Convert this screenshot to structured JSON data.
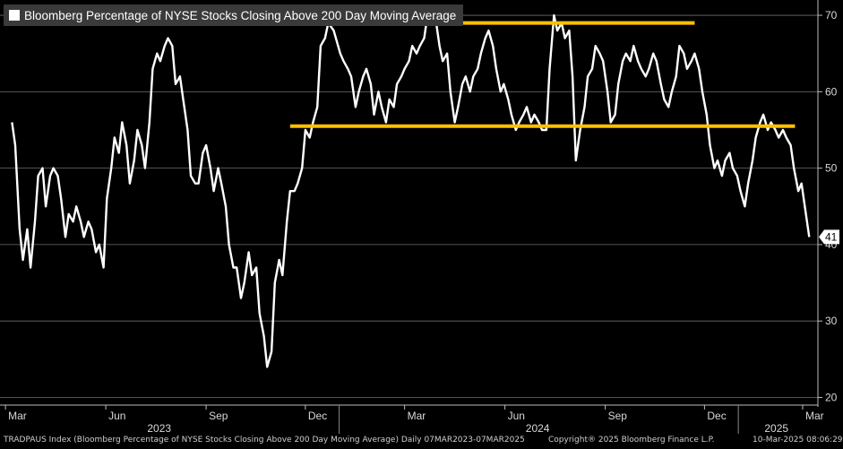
{
  "chart_data": {
    "type": "line",
    "title": "Bloomberg Percentage of NYSE Stocks Closing Above 200 Day Moving Average",
    "series": [
      {
        "color": "#ffffff",
        "points": [
          [
            "2023-03-07",
            56
          ],
          [
            "2023-03-10",
            53
          ],
          [
            "2023-03-14",
            42
          ],
          [
            "2023-03-17",
            38
          ],
          [
            "2023-03-21",
            42
          ],
          [
            "2023-03-24",
            37
          ],
          [
            "2023-03-28",
            43
          ],
          [
            "2023-03-31",
            49
          ],
          [
            "2023-04-04",
            50
          ],
          [
            "2023-04-07",
            45
          ],
          [
            "2023-04-11",
            49
          ],
          [
            "2023-04-14",
            50
          ],
          [
            "2023-04-18",
            49
          ],
          [
            "2023-04-21",
            46
          ],
          [
            "2023-04-25",
            41
          ],
          [
            "2023-04-28",
            44
          ],
          [
            "2023-05-02",
            43
          ],
          [
            "2023-05-05",
            45
          ],
          [
            "2023-05-09",
            43
          ],
          [
            "2023-05-12",
            41
          ],
          [
            "2023-05-16",
            43
          ],
          [
            "2023-05-19",
            42
          ],
          [
            "2023-05-23",
            39
          ],
          [
            "2023-05-26",
            40
          ],
          [
            "2023-05-30",
            37
          ],
          [
            "2023-06-02",
            46
          ],
          [
            "2023-06-06",
            50
          ],
          [
            "2023-06-09",
            54
          ],
          [
            "2023-06-13",
            52
          ],
          [
            "2023-06-16",
            56
          ],
          [
            "2023-06-20",
            53
          ],
          [
            "2023-06-23",
            48
          ],
          [
            "2023-06-27",
            51
          ],
          [
            "2023-06-30",
            55
          ],
          [
            "2023-07-04",
            53
          ],
          [
            "2023-07-07",
            50
          ],
          [
            "2023-07-11",
            56
          ],
          [
            "2023-07-14",
            63
          ],
          [
            "2023-07-18",
            65
          ],
          [
            "2023-07-21",
            64
          ],
          [
            "2023-07-25",
            66
          ],
          [
            "2023-07-28",
            67
          ],
          [
            "2023-08-01",
            66
          ],
          [
            "2023-08-04",
            61
          ],
          [
            "2023-08-08",
            62
          ],
          [
            "2023-08-11",
            59
          ],
          [
            "2023-08-15",
            55
          ],
          [
            "2023-08-18",
            49
          ],
          [
            "2023-08-22",
            48
          ],
          [
            "2023-08-25",
            48
          ],
          [
            "2023-08-29",
            52
          ],
          [
            "2023-09-01",
            53
          ],
          [
            "2023-09-05",
            50
          ],
          [
            "2023-09-08",
            47
          ],
          [
            "2023-09-12",
            50
          ],
          [
            "2023-09-15",
            48
          ],
          [
            "2023-09-19",
            45
          ],
          [
            "2023-09-22",
            40
          ],
          [
            "2023-09-26",
            37
          ],
          [
            "2023-09-29",
            37
          ],
          [
            "2023-10-03",
            33
          ],
          [
            "2023-10-06",
            35
          ],
          [
            "2023-10-10",
            39
          ],
          [
            "2023-10-13",
            36
          ],
          [
            "2023-10-17",
            37
          ],
          [
            "2023-10-20",
            31
          ],
          [
            "2023-10-24",
            28
          ],
          [
            "2023-10-27",
            24
          ],
          [
            "2023-10-31",
            26
          ],
          [
            "2023-11-03",
            35
          ],
          [
            "2023-11-07",
            38
          ],
          [
            "2023-11-10",
            36
          ],
          [
            "2023-11-14",
            43
          ],
          [
            "2023-11-17",
            47
          ],
          [
            "2023-11-21",
            47
          ],
          [
            "2023-11-24",
            48
          ],
          [
            "2023-11-28",
            50
          ],
          [
            "2023-12-01",
            55
          ],
          [
            "2023-12-05",
            54
          ],
          [
            "2023-12-08",
            56
          ],
          [
            "2023-12-12",
            58
          ],
          [
            "2023-12-15",
            66
          ],
          [
            "2023-12-19",
            67
          ],
          [
            "2023-12-22",
            69
          ],
          [
            "2023-12-27",
            68
          ],
          [
            "2024-01-02",
            65
          ],
          [
            "2024-01-05",
            64
          ],
          [
            "2024-01-09",
            63
          ],
          [
            "2024-01-12",
            62
          ],
          [
            "2024-01-16",
            58
          ],
          [
            "2024-01-19",
            60
          ],
          [
            "2024-01-23",
            62
          ],
          [
            "2024-01-26",
            63
          ],
          [
            "2024-01-30",
            61
          ],
          [
            "2024-02-02",
            57
          ],
          [
            "2024-02-06",
            60
          ],
          [
            "2024-02-09",
            58
          ],
          [
            "2024-02-13",
            56
          ],
          [
            "2024-02-16",
            59
          ],
          [
            "2024-02-20",
            58
          ],
          [
            "2024-02-23",
            61
          ],
          [
            "2024-02-27",
            62
          ],
          [
            "2024-03-01",
            63
          ],
          [
            "2024-03-05",
            64
          ],
          [
            "2024-03-08",
            66
          ],
          [
            "2024-03-12",
            65
          ],
          [
            "2024-03-15",
            66
          ],
          [
            "2024-03-19",
            67
          ],
          [
            "2024-03-22",
            70
          ],
          [
            "2024-03-26",
            69
          ],
          [
            "2024-03-29",
            70
          ],
          [
            "2024-04-02",
            66
          ],
          [
            "2024-04-05",
            64
          ],
          [
            "2024-04-09",
            65
          ],
          [
            "2024-04-12",
            60
          ],
          [
            "2024-04-16",
            56
          ],
          [
            "2024-04-19",
            58
          ],
          [
            "2024-04-23",
            61
          ],
          [
            "2024-04-26",
            62
          ],
          [
            "2024-04-30",
            60
          ],
          [
            "2024-05-03",
            62
          ],
          [
            "2024-05-07",
            63
          ],
          [
            "2024-05-10",
            65
          ],
          [
            "2024-05-14",
            67
          ],
          [
            "2024-05-17",
            68
          ],
          [
            "2024-05-21",
            66
          ],
          [
            "2024-05-24",
            63
          ],
          [
            "2024-05-28",
            60
          ],
          [
            "2024-05-31",
            61
          ],
          [
            "2024-06-04",
            59
          ],
          [
            "2024-06-07",
            57
          ],
          [
            "2024-06-11",
            55
          ],
          [
            "2024-06-14",
            56
          ],
          [
            "2024-06-18",
            57
          ],
          [
            "2024-06-21",
            58
          ],
          [
            "2024-06-25",
            56
          ],
          [
            "2024-06-28",
            57
          ],
          [
            "2024-07-02",
            56
          ],
          [
            "2024-07-05",
            55
          ],
          [
            "2024-07-09",
            55
          ],
          [
            "2024-07-12",
            63
          ],
          [
            "2024-07-16",
            70
          ],
          [
            "2024-07-19",
            68
          ],
          [
            "2024-07-23",
            69
          ],
          [
            "2024-07-26",
            67
          ],
          [
            "2024-07-30",
            68
          ],
          [
            "2024-08-02",
            62
          ],
          [
            "2024-08-05",
            51
          ],
          [
            "2024-08-09",
            55
          ],
          [
            "2024-08-13",
            58
          ],
          [
            "2024-08-16",
            62
          ],
          [
            "2024-08-20",
            63
          ],
          [
            "2024-08-23",
            66
          ],
          [
            "2024-08-27",
            65
          ],
          [
            "2024-08-30",
            64
          ],
          [
            "2024-09-03",
            60
          ],
          [
            "2024-09-06",
            56
          ],
          [
            "2024-09-10",
            57
          ],
          [
            "2024-09-13",
            61
          ],
          [
            "2024-09-17",
            64
          ],
          [
            "2024-09-20",
            65
          ],
          [
            "2024-09-24",
            64
          ],
          [
            "2024-09-27",
            66
          ],
          [
            "2024-10-01",
            64
          ],
          [
            "2024-10-04",
            63
          ],
          [
            "2024-10-08",
            62
          ],
          [
            "2024-10-11",
            63
          ],
          [
            "2024-10-15",
            65
          ],
          [
            "2024-10-18",
            64
          ],
          [
            "2024-10-22",
            61
          ],
          [
            "2024-10-25",
            59
          ],
          [
            "2024-10-29",
            58
          ],
          [
            "2024-11-01",
            60
          ],
          [
            "2024-11-05",
            62
          ],
          [
            "2024-11-08",
            66
          ],
          [
            "2024-11-12",
            65
          ],
          [
            "2024-11-15",
            63
          ],
          [
            "2024-11-19",
            64
          ],
          [
            "2024-11-22",
            65
          ],
          [
            "2024-11-26",
            63
          ],
          [
            "2024-11-29",
            60
          ],
          [
            "2024-12-03",
            57
          ],
          [
            "2024-12-06",
            53
          ],
          [
            "2024-12-10",
            50
          ],
          [
            "2024-12-13",
            51
          ],
          [
            "2024-12-17",
            49
          ],
          [
            "2024-12-20",
            51
          ],
          [
            "2024-12-24",
            52
          ],
          [
            "2024-12-27",
            50
          ],
          [
            "2024-12-31",
            49
          ],
          [
            "2025-01-03",
            47
          ],
          [
            "2025-01-07",
            45
          ],
          [
            "2025-01-10",
            48
          ],
          [
            "2025-01-14",
            51
          ],
          [
            "2025-01-17",
            54
          ],
          [
            "2025-01-21",
            56
          ],
          [
            "2025-01-24",
            57
          ],
          [
            "2025-01-28",
            55
          ],
          [
            "2025-01-31",
            56
          ],
          [
            "2025-02-04",
            55
          ],
          [
            "2025-02-07",
            54
          ],
          [
            "2025-02-11",
            55
          ],
          [
            "2025-02-14",
            54
          ],
          [
            "2025-02-18",
            53
          ],
          [
            "2025-02-21",
            50
          ],
          [
            "2025-02-25",
            47
          ],
          [
            "2025-02-28",
            48
          ],
          [
            "2025-03-04",
            44
          ],
          [
            "2025-03-07",
            41
          ]
        ]
      }
    ],
    "reference_lines": [
      {
        "color": "#ffc000",
        "x_from": "2023-11-15",
        "x_to": "2024-11-22",
        "y": 69
      },
      {
        "color": "#ffc000",
        "x_from": "2023-11-17",
        "x_to": "2025-02-22",
        "y": 55.5
      }
    ],
    "x_range": [
      "2023-02-24",
      "2025-03-15"
    ],
    "y_range": [
      19,
      72
    ],
    "y_axis_side": "right",
    "y_ticks": [
      20,
      30,
      40,
      50,
      60,
      70
    ],
    "x_month_ticks": [
      {
        "date": "2023-03-01",
        "label": "Mar"
      },
      {
        "date": "2023-06-01",
        "label": "Jun"
      },
      {
        "date": "2023-09-01",
        "label": "Sep"
      },
      {
        "date": "2023-12-01",
        "label": "Dec"
      },
      {
        "date": "2024-03-01",
        "label": "Mar"
      },
      {
        "date": "2024-06-01",
        "label": "Jun"
      },
      {
        "date": "2024-09-01",
        "label": "Sep"
      },
      {
        "date": "2024-12-01",
        "label": "Dec"
      },
      {
        "date": "2025-03-01",
        "label": "Mar"
      }
    ],
    "x_year_labels": [
      {
        "date": "2023-07-20",
        "label": "2023"
      },
      {
        "date": "2024-07-01",
        "label": "2024"
      },
      {
        "date": "2025-02-05",
        "label": "2025"
      }
    ],
    "year_dividers": [
      "2024-01-01",
      "2025-01-01"
    ],
    "last_value_label": "41",
    "grid": true
  },
  "footer": {
    "left": "TRADPAUS Index (Bloomberg Percentage of NYSE Stocks Closing Above 200 Day Moving Average)  Daily 07MAR2023-07MAR2025",
    "center": "Copyright® 2025 Bloomberg Finance L.P.",
    "right": "10-Mar-2025 08:06:29"
  },
  "colors": {
    "background": "#000000",
    "line": "#ffffff",
    "highlight": "#ffc000",
    "grid": "#6e6e6e"
  }
}
